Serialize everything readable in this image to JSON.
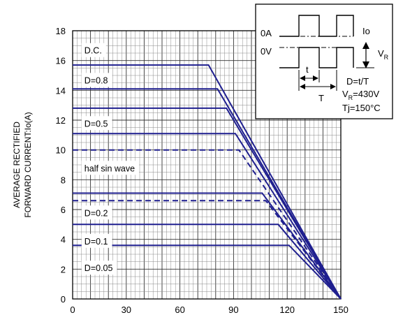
{
  "chart_data": {
    "type": "line",
    "title": "",
    "xlabel": "",
    "ylabel_lines": [
      "AVERAGE RECTIFIED",
      "FORWARD CURRENT:Io(A)"
    ],
    "xlim": [
      0,
      150
    ],
    "ylim": [
      0,
      18
    ],
    "x_ticks": [
      0,
      30,
      60,
      90,
      120,
      150
    ],
    "y_ticks": [
      0,
      2,
      4,
      6,
      8,
      10,
      12,
      14,
      16,
      18
    ],
    "grid": true,
    "line_color": "#1f1f8f",
    "series": [
      {
        "name": "D.C.",
        "style": "solid",
        "points": [
          [
            0,
            15.7
          ],
          [
            76,
            15.7
          ],
          [
            150,
            0
          ]
        ]
      },
      {
        "name": "D=0.8",
        "style": "solid",
        "points": [
          [
            0,
            14.1
          ],
          [
            81,
            14.1
          ],
          [
            150,
            0
          ]
        ]
      },
      {
        "name": "",
        "style": "solid",
        "points": [
          [
            0,
            12.8
          ],
          [
            86,
            12.8
          ],
          [
            150,
            0
          ]
        ]
      },
      {
        "name": "D=0.5",
        "style": "solid",
        "points": [
          [
            0,
            11.1
          ],
          [
            91,
            11.1
          ],
          [
            150,
            0
          ]
        ]
      },
      {
        "name": "half sin wave",
        "style": "dashed",
        "points": [
          [
            0,
            10.0
          ],
          [
            93,
            10.0
          ],
          [
            150,
            0
          ]
        ]
      },
      {
        "name": "",
        "style": "solid",
        "points": [
          [
            0,
            7.1
          ],
          [
            106,
            7.1
          ],
          [
            150,
            0
          ]
        ]
      },
      {
        "name": "",
        "style": "dashed",
        "points": [
          [
            0,
            6.6
          ],
          [
            108,
            6.6
          ],
          [
            150,
            0
          ]
        ]
      },
      {
        "name": "D=0.2",
        "style": "solid",
        "points": [
          [
            0,
            5.0
          ],
          [
            115,
            5.0
          ],
          [
            150,
            0
          ]
        ]
      },
      {
        "name": "D=0.1",
        "style": "solid",
        "points": [
          [
            0,
            3.6
          ],
          [
            121,
            3.6
          ],
          [
            150,
            0
          ]
        ]
      }
    ],
    "series_labels": [
      {
        "text": "D.C.",
        "x": 5,
        "y": 16.7
      },
      {
        "text": "D=0.8",
        "x": 5,
        "y": 14.7
      },
      {
        "text": "D=0.5",
        "x": 5,
        "y": 11.8
      },
      {
        "text": "half sin wave",
        "x": 5,
        "y": 8.8
      },
      {
        "text": "D=0.2",
        "x": 5,
        "y": 5.8
      },
      {
        "text": "D=0.1",
        "x": 5,
        "y": 3.9
      },
      {
        "text": "D=0.05",
        "x": 5,
        "y": 2.1
      }
    ],
    "inset": {
      "left_labels": [
        "0A",
        "0V"
      ],
      "right_labels": [
        "Io"
      ],
      "vr_label": "V",
      "vr_sub": "R",
      "t_label": "t",
      "T_label": "T",
      "formula_lines": [
        "D=t/T",
        "V",
        "R",
        "=430V",
        "Tj=150°C"
      ]
    }
  }
}
